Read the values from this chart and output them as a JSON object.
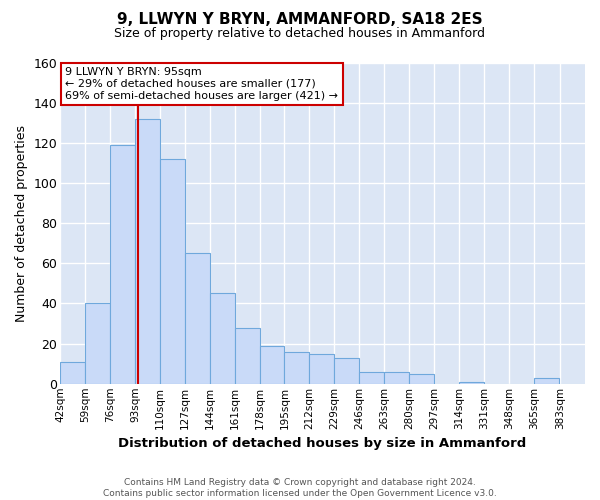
{
  "title": "9, LLWYN Y BRYN, AMMANFORD, SA18 2ES",
  "subtitle": "Size of property relative to detached houses in Ammanford",
  "xlabel": "Distribution of detached houses by size in Ammanford",
  "ylabel": "Number of detached properties",
  "footer_line1": "Contains HM Land Registry data © Crown copyright and database right 2024.",
  "footer_line2": "Contains public sector information licensed under the Open Government Licence v3.0.",
  "bin_labels": [
    "42sqm",
    "59sqm",
    "76sqm",
    "93sqm",
    "110sqm",
    "127sqm",
    "144sqm",
    "161sqm",
    "178sqm",
    "195sqm",
    "212sqm",
    "229sqm",
    "246sqm",
    "263sqm",
    "280sqm",
    "297sqm",
    "314sqm",
    "331sqm",
    "348sqm",
    "365sqm",
    "383sqm"
  ],
  "bar_values": [
    11,
    40,
    119,
    132,
    112,
    65,
    45,
    28,
    19,
    16,
    15,
    13,
    6,
    6,
    5,
    0,
    1,
    0,
    0,
    3,
    0
  ],
  "bar_color": "#c9daf8",
  "bar_edge_color": "#6fa8dc",
  "plot_bg_color": "#dce6f5",
  "fig_bg_color": "#ffffff",
  "grid_color": "#ffffff",
  "ylim": [
    0,
    160
  ],
  "yticks": [
    0,
    20,
    40,
    60,
    80,
    100,
    120,
    140,
    160
  ],
  "vline_x": 95,
  "vline_color": "#cc0000",
  "annotation_line1": "9 LLWYN Y BRYN: 95sqm",
  "annotation_line2": "← 29% of detached houses are smaller (177)",
  "annotation_line3": "69% of semi-detached houses are larger (421) →",
  "annotation_box_edge_color": "#cc0000"
}
